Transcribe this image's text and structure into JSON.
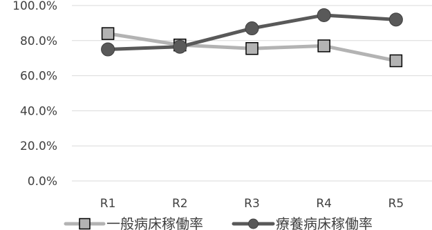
{
  "chart_data": {
    "type": "line",
    "categories": [
      "R1",
      "R2",
      "R3",
      "R4",
      "R5"
    ],
    "ylim": [
      0,
      100
    ],
    "yticks": [
      "0.0%",
      "20.0%",
      "40.0%",
      "60.0%",
      "80.0%",
      "100.0%"
    ],
    "grid": true,
    "legend_position": "bottom",
    "series": [
      {
        "name": "一般病床稼働率",
        "values": [
          84.0,
          77.5,
          75.5,
          77.0,
          68.5
        ],
        "color": "#b3b3b3",
        "marker": "square"
      },
      {
        "name": "療養病床稼働率",
        "values": [
          75.0,
          76.5,
          87.0,
          94.5,
          92.0
        ],
        "color": "#595959",
        "marker": "circle"
      }
    ]
  }
}
